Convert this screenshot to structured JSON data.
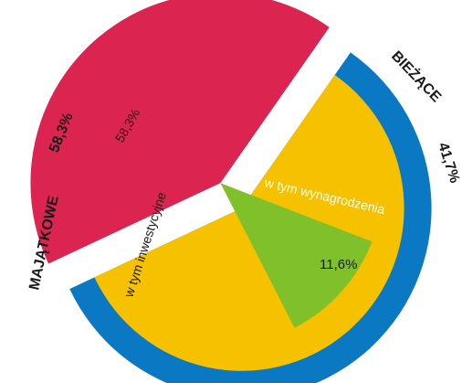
{
  "chart_data": {
    "type": "pie",
    "title": "",
    "slices": [
      {
        "label": "MAJĄTKOWE",
        "value": 58.3,
        "display": "58,3%",
        "color": "#0a78c2",
        "sub": {
          "label": "w tym inwestycyjne",
          "value": 58.3,
          "display": "58,3%",
          "color": "#f6c200"
        }
      },
      {
        "label": "BIEŻĄCE",
        "value": 41.7,
        "display": "41,7%",
        "color": "#dc2450",
        "sub": {
          "label": "w tym wynagrodzenia",
          "value": 11.6,
          "display": "11,6%",
          "color": "#80c02a"
        }
      }
    ]
  }
}
